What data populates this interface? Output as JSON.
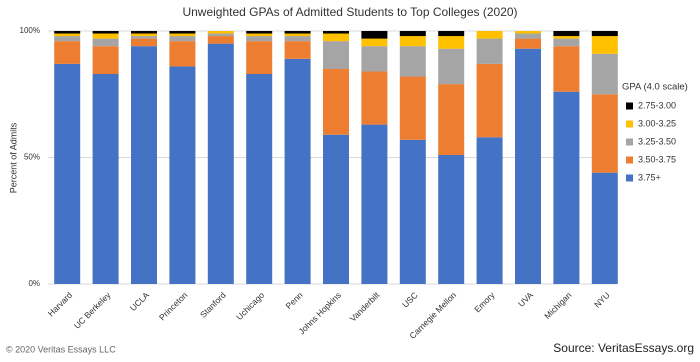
{
  "chart_data": {
    "type": "stacked_bar",
    "title": "Unweighted GPAs of Admitted Students to Top Colleges (2020)",
    "y_label": "Percent of Admits",
    "categories": [
      "Harvard",
      "UC Berkeley",
      "UCLA",
      "Princeton",
      "Stanford",
      "Uchicago",
      "Penn",
      "Johns Hopkins",
      "Vanderbilt",
      "USC",
      "Carnegie Mellon",
      "Emory",
      "UVA",
      "Michigan",
      "NYU"
    ],
    "series": [
      {
        "name": "3.75+",
        "color": "#4472c4",
        "values": [
          87,
          83,
          94,
          86,
          95,
          83,
          89,
          59,
          63,
          57,
          51,
          58,
          93,
          76,
          44
        ]
      },
      {
        "name": "3.50-3.75",
        "color": "#ed7d31",
        "values": [
          9,
          11,
          3,
          10,
          3,
          13,
          7,
          26,
          21,
          25,
          28,
          29,
          4,
          18,
          31
        ]
      },
      {
        "name": "3.25-3.50",
        "color": "#a5a5a5",
        "values": [
          2,
          3,
          1,
          2,
          1,
          2,
          2,
          11,
          10,
          12,
          14,
          10,
          2,
          3,
          16
        ]
      },
      {
        "name": "3.00-3.25",
        "color": "#ffc000",
        "values": [
          1,
          2,
          1,
          1,
          1,
          1,
          1,
          3,
          3,
          4,
          5,
          3,
          1,
          1,
          7
        ]
      },
      {
        "name": "2.75-3.00",
        "color": "#000000",
        "values": [
          1,
          1,
          1,
          1,
          0,
          1,
          1,
          1,
          3,
          2,
          2,
          0,
          0,
          2,
          2
        ]
      }
    ],
    "ylim": [
      0,
      100
    ],
    "yticks": [
      {
        "value": 0,
        "label": "0%"
      },
      {
        "value": 50,
        "label": "50%"
      },
      {
        "value": 100,
        "label": "100%"
      }
    ],
    "grid": true,
    "legend_title": "GPA (4.0 scale)",
    "legend_position": "right",
    "copyright": "© 2020 Veritas Essays LLC",
    "source": "Source: VeritasEssays.org"
  }
}
